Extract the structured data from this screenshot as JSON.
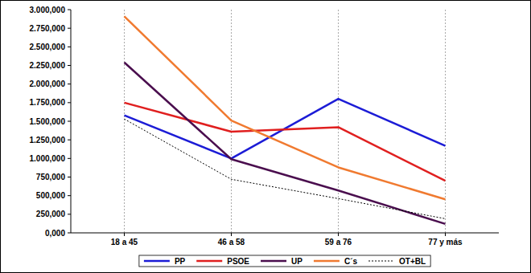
{
  "chart_data": {
    "type": "line",
    "categories": [
      "18 a 45",
      "46 a 58",
      "59 a 76",
      "77 y más"
    ],
    "series": [
      {
        "name": "PP",
        "color": "#1c1cd6",
        "values": [
          1580,
          1000,
          1800,
          1170
        ]
      },
      {
        "name": "PSOE",
        "color": "#e01f1f",
        "values": [
          1750,
          1360,
          1420,
          700
        ]
      },
      {
        "name": "UP",
        "color": "#4a0e4e",
        "values": [
          2290,
          990,
          570,
          120
        ]
      },
      {
        "name": "C´s",
        "color": "#f07a30",
        "values": [
          2910,
          1510,
          880,
          450
        ]
      },
      {
        "name": "OT+BL",
        "color": "#000000",
        "line_style": "dotted",
        "values": [
          1530,
          720,
          460,
          190
        ]
      }
    ],
    "ylim": [
      0,
      3000
    ],
    "yticks": [
      {
        "value": 0,
        "label": "0,000"
      },
      {
        "value": 250,
        "label": "250,000"
      },
      {
        "value": 500,
        "label": "500,000"
      },
      {
        "value": 750,
        "label": "750,000"
      },
      {
        "value": 1000,
        "label": "1.000,000"
      },
      {
        "value": 1250,
        "label": "1.250,000"
      },
      {
        "value": 1500,
        "label": "1.500,000"
      },
      {
        "value": 1750,
        "label": "1.750,000"
      },
      {
        "value": 2000,
        "label": "2.000,000"
      },
      {
        "value": 2250,
        "label": "2.250,000"
      },
      {
        "value": 2500,
        "label": "2.500,000"
      },
      {
        "value": 2750,
        "label": "2.750,000"
      },
      {
        "value": 3000,
        "label": "3.000,000"
      }
    ],
    "grid": true,
    "legend": "bottom"
  }
}
